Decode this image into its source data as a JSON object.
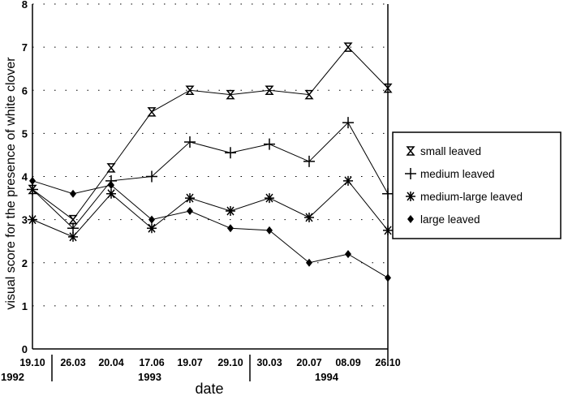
{
  "chart_data": {
    "type": "line",
    "title": "",
    "xlabel": "date",
    "ylabel": "visual score for the presence of white clover",
    "ylim": [
      0,
      8
    ],
    "yticks": [
      "0",
      "1",
      "2",
      "3",
      "4",
      "5",
      "6",
      "7",
      "8"
    ],
    "categories": [
      "19.10",
      "26.03",
      "20.04",
      "17.06",
      "19.07",
      "29.10",
      "30.03",
      "20.07",
      "08.09",
      "26.10"
    ],
    "year_labels": [
      "1992",
      "1993",
      "1994"
    ],
    "grid": "dotted horizontal",
    "legend_position": "right",
    "series": [
      {
        "name": "small leaved",
        "marker": "hourglass",
        "values": [
          3.7,
          3.0,
          4.2,
          5.5,
          6.0,
          5.9,
          6.0,
          5.9,
          7.0,
          6.05
        ]
      },
      {
        "name": "medium leaved",
        "marker": "plus",
        "values": [
          3.7,
          2.8,
          3.9,
          4.0,
          4.8,
          4.55,
          4.75,
          4.35,
          5.25,
          3.6
        ]
      },
      {
        "name": "medium-large leaved",
        "marker": "asterisk",
        "values": [
          3.0,
          2.6,
          3.6,
          2.8,
          3.5,
          3.2,
          3.5,
          3.05,
          3.9,
          2.75
        ]
      },
      {
        "name": "large leaved",
        "marker": "diamond",
        "values": [
          3.9,
          3.6,
          3.8,
          3.0,
          3.2,
          2.8,
          2.75,
          2.0,
          2.2,
          1.65
        ]
      }
    ]
  }
}
